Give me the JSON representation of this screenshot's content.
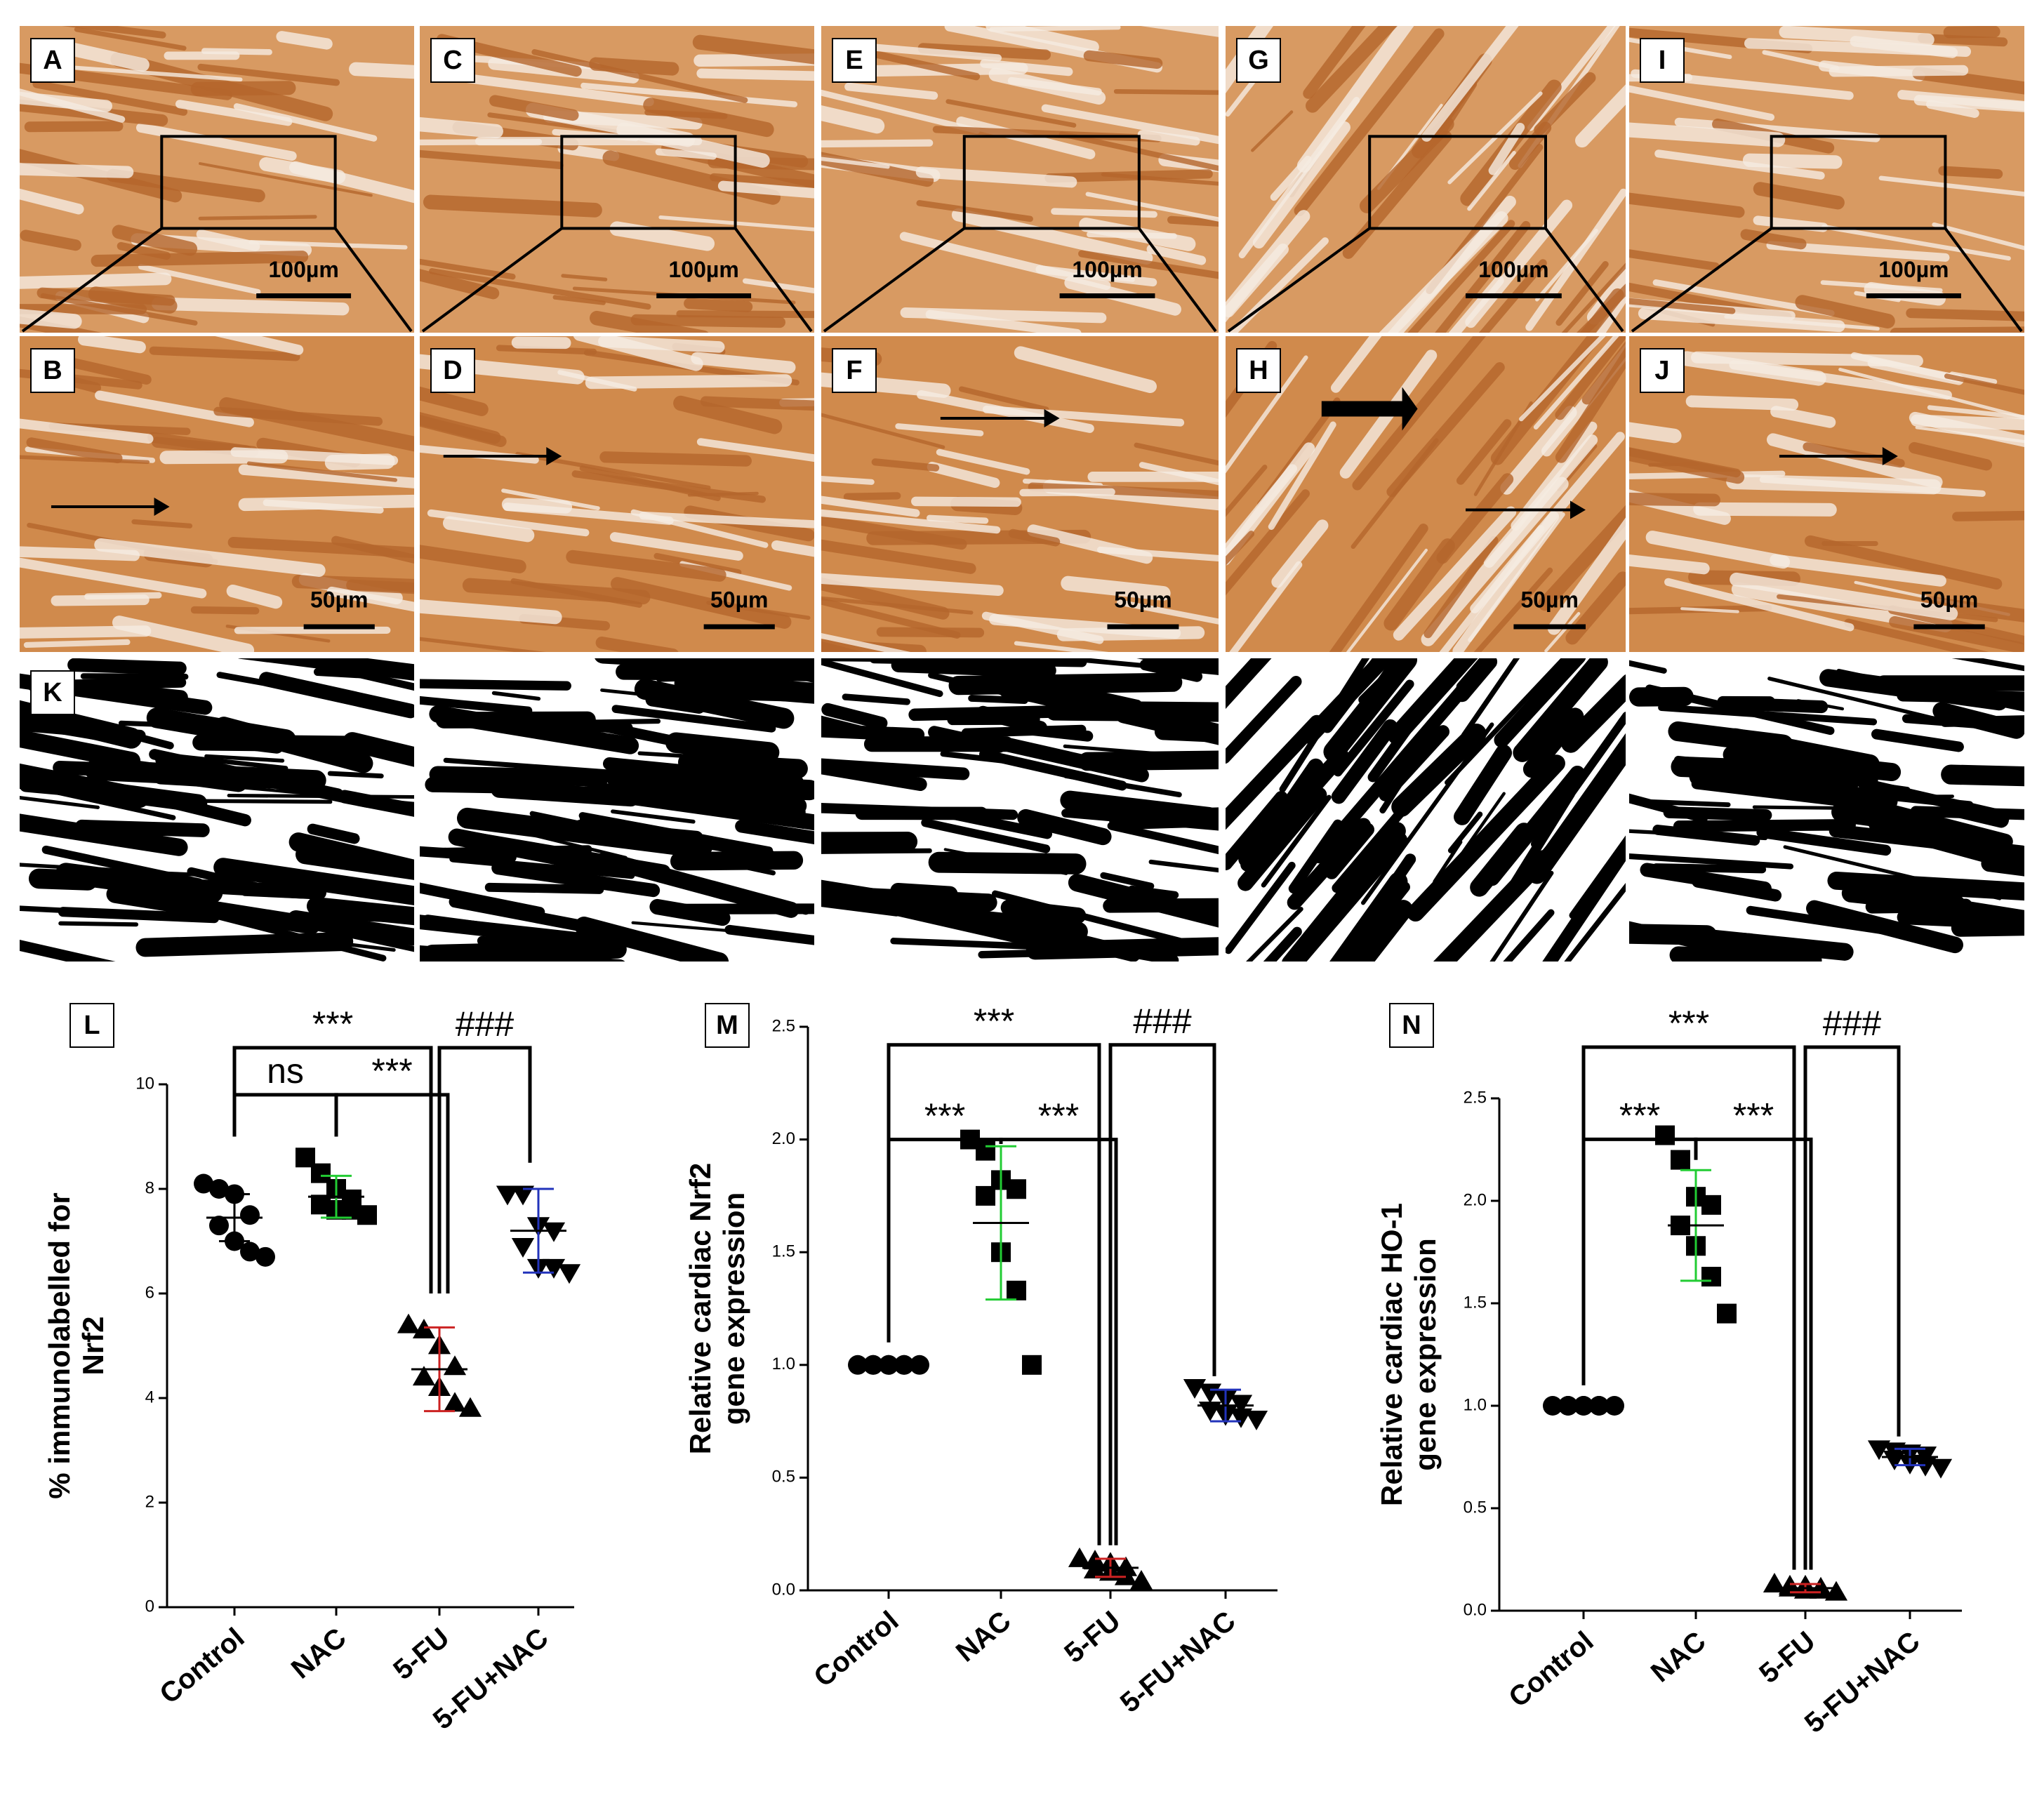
{
  "micrographs": {
    "low_mag": [
      {
        "label": "A",
        "scale_bar": "100µm"
      },
      {
        "label": "C",
        "scale_bar": "100µm"
      },
      {
        "label": "E",
        "scale_bar": "100µm"
      },
      {
        "label": "G",
        "scale_bar": "100µm"
      },
      {
        "label": "I",
        "scale_bar": "100µm"
      }
    ],
    "high_mag": [
      {
        "label": "B",
        "scale_bar": "50µm"
      },
      {
        "label": "D",
        "scale_bar": "50µm"
      },
      {
        "label": "F",
        "scale_bar": "50µm"
      },
      {
        "label": "H",
        "scale_bar": "50µm"
      },
      {
        "label": "J",
        "scale_bar": "50µm"
      }
    ],
    "binary_label": "K"
  },
  "chart_data": [
    {
      "type": "scatter-dot",
      "panel_label": "L",
      "ylabel": [
        "% immunolabelled for",
        "Nrf2"
      ],
      "categories": [
        "Control",
        "NAC",
        "5-FU",
        "5-FU+NAC"
      ],
      "markers": [
        "circle",
        "square",
        "triangle-up",
        "triangle-down"
      ],
      "error_colors": [
        "#000000",
        "#22cc33",
        "#cc2222",
        "#2233bb"
      ],
      "points": [
        [
          8.1,
          8.0,
          7.9,
          7.5,
          7.3,
          7.0,
          6.8,
          6.7
        ],
        [
          8.6,
          8.3,
          8.0,
          7.8,
          7.7,
          7.6,
          7.6,
          7.5
        ],
        [
          5.4,
          5.3,
          5.0,
          4.6,
          4.4,
          4.2,
          3.9,
          3.8
        ],
        [
          7.9,
          7.9,
          7.3,
          7.2,
          6.9,
          6.5,
          6.5,
          6.4
        ]
      ],
      "means": [
        7.45,
        7.85,
        4.55,
        7.2
      ],
      "sds": [
        0.45,
        0.4,
        0.8,
        0.8
      ],
      "ylim": [
        0,
        10
      ],
      "yticks": [
        0,
        2,
        4,
        6,
        8,
        10
      ],
      "annotations": [
        "***",
        "ns",
        "***",
        "###"
      ]
    },
    {
      "type": "scatter-dot",
      "panel_label": "M",
      "ylabel": [
        "Relative cardiac Nrf2",
        "gene expression"
      ],
      "categories": [
        "Control",
        "NAC",
        "5-FU",
        "5-FU+NAC"
      ],
      "markers": [
        "circle",
        "square",
        "triangle-up",
        "triangle-down"
      ],
      "error_colors": [
        "#000000",
        "#22cc33",
        "#cc2222",
        "#2233bb"
      ],
      "points": [
        [
          1.0,
          1.0,
          1.0,
          1.0,
          1.0,
          1.0,
          1.0,
          1.0
        ],
        [
          2.0,
          1.95,
          1.82,
          1.78,
          1.75,
          1.5,
          1.33,
          1.0
        ],
        [
          0.14,
          0.13,
          0.12,
          0.1,
          0.09,
          0.08,
          0.06,
          0.04
        ],
        [
          0.9,
          0.88,
          0.85,
          0.83,
          0.8,
          0.78,
          0.77,
          0.76
        ]
      ],
      "means": [
        1.0,
        1.63,
        0.1,
        0.82
      ],
      "sds": [
        0,
        0.34,
        0.04,
        0.07
      ],
      "ylim": [
        0,
        2.5
      ],
      "yticks": [
        {
          "value": 0,
          "label": "0.0"
        },
        0.5,
        {
          "value": 1,
          "label": "1.0"
        },
        1.5,
        {
          "value": 2,
          "label": "2.0"
        },
        2.5
      ],
      "annotations": [
        "***",
        "***",
        "***",
        "###"
      ]
    },
    {
      "type": "scatter-dot",
      "panel_label": "N",
      "ylabel": [
        "Relative cardiac HO-1",
        "gene expression"
      ],
      "categories": [
        "Control",
        "NAC",
        "5-FU",
        "5-FU+NAC"
      ],
      "markers": [
        "circle",
        "square",
        "triangle-up",
        "triangle-down"
      ],
      "error_colors": [
        "#000000",
        "#22cc33",
        "#cc2222",
        "#2233bb"
      ],
      "points": [
        [
          1.0,
          1.0,
          1.0,
          1.0,
          1.0,
          1.0,
          1.0,
          1.0
        ],
        [
          2.32,
          2.2,
          2.02,
          1.98,
          1.88,
          1.78,
          1.63,
          1.45
        ],
        [
          0.13,
          0.12,
          0.12,
          0.11,
          0.11,
          0.1,
          0.1,
          0.09
        ],
        [
          0.79,
          0.78,
          0.77,
          0.76,
          0.74,
          0.72,
          0.71,
          0.7
        ]
      ],
      "means": [
        1.0,
        1.88,
        0.11,
        0.75
      ],
      "sds": [
        0,
        0.27,
        0.02,
        0.04
      ],
      "ylim": [
        0,
        2.5
      ],
      "yticks": [
        {
          "value": 0,
          "label": "0.0"
        },
        0.5,
        {
          "value": 1,
          "label": "1.0"
        },
        1.5,
        {
          "value": 2,
          "label": "2.0"
        },
        2.5
      ],
      "annotations": [
        "***",
        "***",
        "***",
        "###"
      ]
    }
  ]
}
